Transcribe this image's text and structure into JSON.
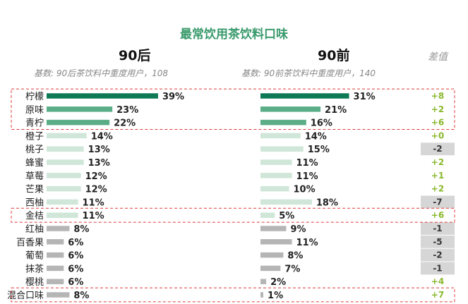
{
  "chart_data": {
    "type": "bar",
    "title": "最常饮用茶饮料口味",
    "diff_header": "差值",
    "categories": [
      "柠檬",
      "原味",
      "青柠",
      "橙子",
      "桃子",
      "蜂蜜",
      "草莓",
      "芒果",
      "西柚",
      "金桔",
      "红柚",
      "百香果",
      "葡萄",
      "抹茶",
      "樱桃",
      "混合口味"
    ],
    "series": [
      {
        "name": "90后",
        "base_label": "基数: 90后茶饮料中重度用户，108",
        "values": [
          39,
          23,
          22,
          14,
          13,
          13,
          12,
          12,
          11,
          11,
          8,
          6,
          6,
          6,
          6,
          8
        ],
        "labels": [
          "39%",
          "23%",
          "22%",
          "14%",
          "13%",
          "13%",
          "12%",
          "12%",
          "11%",
          "11%",
          "8%",
          "6%",
          "6%",
          "6%",
          "6%",
          "8%"
        ]
      },
      {
        "name": "90前",
        "base_label": "基数: 90前茶饮料中重度用户，140",
        "values": [
          31,
          21,
          16,
          14,
          15,
          11,
          11,
          10,
          18,
          5,
          9,
          11,
          8,
          7,
          2,
          1
        ],
        "labels": [
          "31%",
          "21%",
          "16%",
          "14%",
          "15%",
          "11%",
          "11%",
          "10%",
          "18%",
          "5%",
          "9%",
          "11%",
          "8%",
          "7%",
          "2%",
          "1%"
        ]
      }
    ],
    "diff": [
      "+8",
      "+2",
      "+6",
      "+0",
      "-2",
      "+2",
      "+1",
      "+2",
      "-7",
      "+6",
      "-1",
      "-5",
      "-2",
      "-1",
      "+4",
      "+7"
    ],
    "highlighted_groups": [
      [
        "柠檬",
        "原味",
        "青柠"
      ],
      [
        "金桔"
      ],
      [
        "混合口味"
      ]
    ],
    "colors": {
      "top": "#0e7a55",
      "mid": "#5aad86",
      "light": "#cfe6d8",
      "gray": "#b5b5b5",
      "diff_positive": "#8ab82d",
      "diff_negative": "#333333",
      "diff_negative_bg": "#d6d6d6",
      "highlight_border": "#e03a3a"
    }
  }
}
